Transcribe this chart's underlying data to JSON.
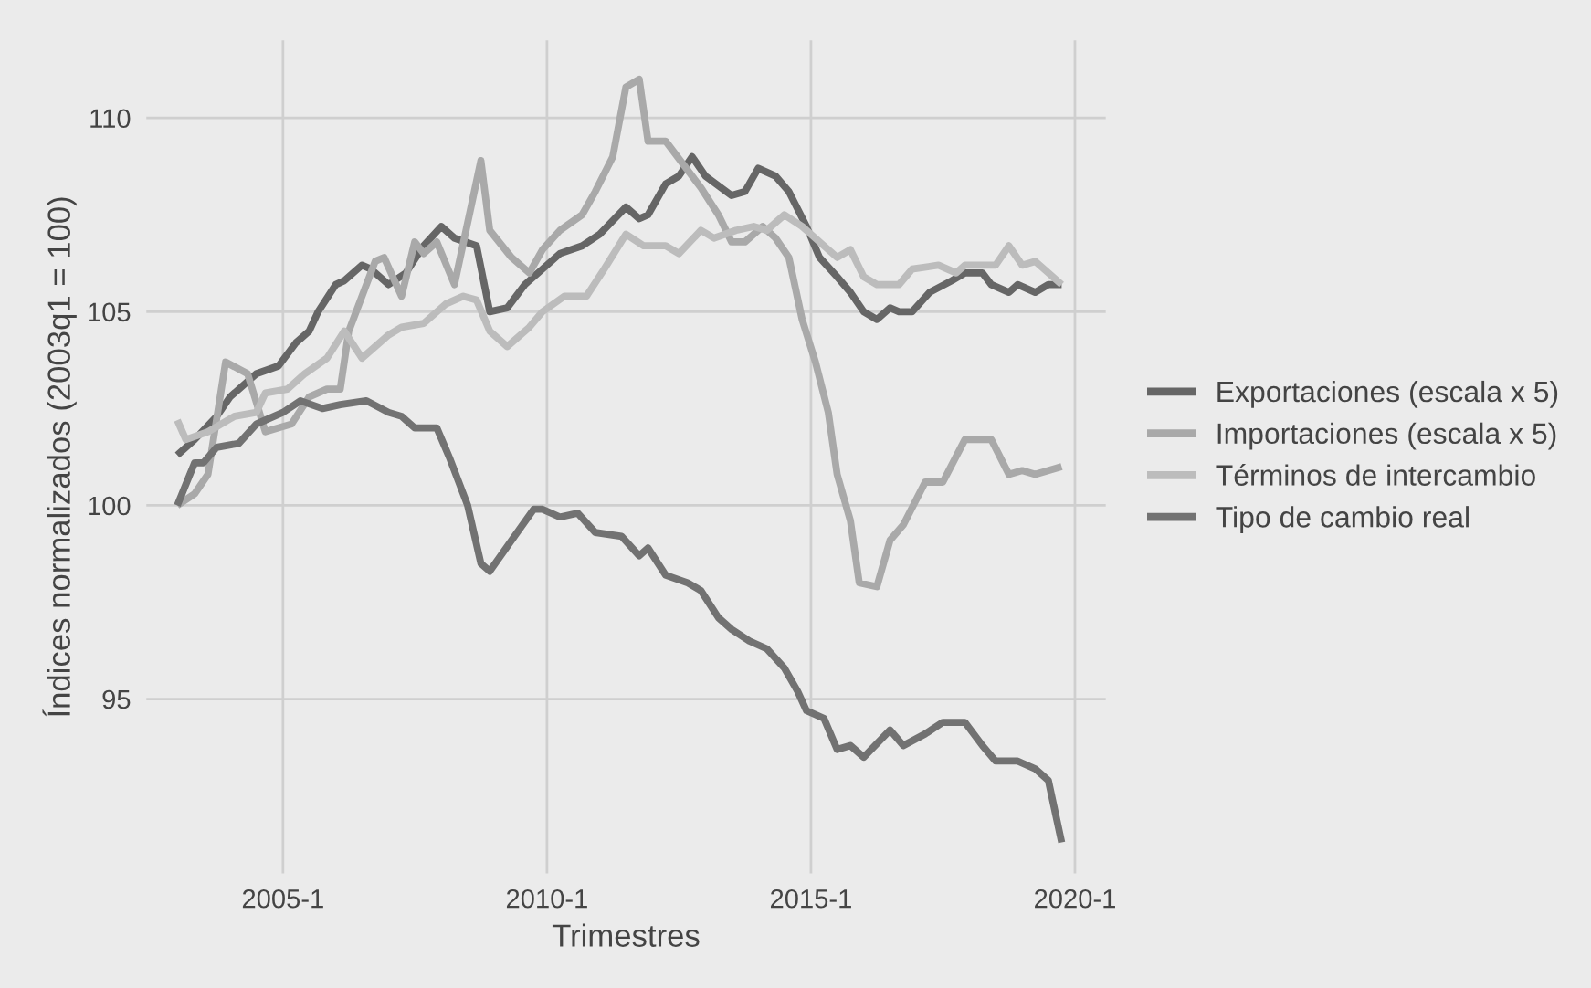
{
  "chart_data": {
    "type": "line",
    "xlabel": "Trimestres",
    "ylabel": "Índices normalizados (2003q1 = 100)",
    "xlim": [
      "2002-06",
      "2020-08"
    ],
    "ylim": [
      90.5,
      112
    ],
    "xticks": [
      {
        "value": "2005-01",
        "label": "2005-1"
      },
      {
        "value": "2010-01",
        "label": "2010-1"
      },
      {
        "value": "2015-01",
        "label": "2015-1"
      },
      {
        "value": "2020-01",
        "label": "2020-1"
      }
    ],
    "yticks": [
      95,
      100,
      105,
      110
    ],
    "grid": true,
    "legend": "right",
    "line_style": "solid",
    "series": [
      {
        "name": "Exportaciones (escala x 5)",
        "color": "#666666",
        "x": [
          "2003-01",
          "2003-05",
          "2003-10",
          "2004-01",
          "2004-07",
          "2004-12",
          "2005-04",
          "2005-07",
          "2005-09",
          "2006-01",
          "2006-03",
          "2006-07",
          "2006-09",
          "2007-01",
          "2007-05",
          "2007-09",
          "2008-01",
          "2008-04",
          "2008-09",
          "2008-12",
          "2009-04",
          "2009-08",
          "2009-12",
          "2010-04",
          "2010-09",
          "2011-01",
          "2011-07",
          "2011-10",
          "2011-12",
          "2012-04",
          "2012-07",
          "2012-10",
          "2013-01",
          "2013-07",
          "2013-10",
          "2014-01",
          "2014-05",
          "2014-08",
          "2014-12",
          "2015-03",
          "2015-07",
          "2015-10",
          "2016-01",
          "2016-04",
          "2016-07",
          "2016-09",
          "2016-12",
          "2017-04",
          "2017-09",
          "2017-12",
          "2018-04",
          "2018-06",
          "2018-10",
          "2018-12",
          "2019-04",
          "2019-07",
          "2019-10"
        ],
        "values": [
          101.3,
          101.7,
          102.3,
          102.8,
          103.4,
          103.6,
          104.2,
          104.5,
          105.0,
          105.7,
          105.8,
          106.2,
          106.1,
          105.7,
          106.0,
          106.7,
          107.2,
          106.9,
          106.7,
          105.0,
          105.1,
          105.7,
          106.1,
          106.5,
          106.7,
          107.0,
          107.7,
          107.4,
          107.5,
          108.3,
          108.5,
          109.0,
          108.5,
          108.0,
          108.1,
          108.7,
          108.5,
          108.1,
          107.2,
          106.4,
          105.9,
          105.5,
          105.0,
          104.8,
          105.1,
          105.0,
          105.0,
          105.5,
          105.8,
          106.0,
          106.0,
          105.7,
          105.5,
          105.7,
          105.5,
          105.7,
          105.7
        ]
      },
      {
        "name": "Importaciones (escala x 5)",
        "color": "#a9a9a9",
        "x": [
          "2003-01",
          "2003-05",
          "2003-08",
          "2003-12",
          "2004-05",
          "2004-09",
          "2005-03",
          "2005-07",
          "2005-11",
          "2006-02",
          "2006-04",
          "2006-10",
          "2006-12",
          "2007-04",
          "2007-07",
          "2007-09",
          "2007-12",
          "2008-04",
          "2008-10",
          "2008-12",
          "2009-05",
          "2009-09",
          "2009-12",
          "2010-04",
          "2010-09",
          "2010-12",
          "2011-04",
          "2011-07",
          "2011-10",
          "2011-12",
          "2012-04",
          "2012-08",
          "2012-12",
          "2013-04",
          "2013-07",
          "2013-10",
          "2014-02",
          "2014-05",
          "2014-08",
          "2014-11",
          "2015-02",
          "2015-05",
          "2015-07",
          "2015-10",
          "2015-12",
          "2016-04",
          "2016-07",
          "2016-10",
          "2017-03",
          "2017-07",
          "2017-12",
          "2018-06",
          "2018-10",
          "2019-01",
          "2019-04",
          "2019-10"
        ],
        "values": [
          100.0,
          100.3,
          100.8,
          103.7,
          103.4,
          101.9,
          102.1,
          102.8,
          103.0,
          103.0,
          104.5,
          106.3,
          106.4,
          105.4,
          106.8,
          106.5,
          106.8,
          105.7,
          108.9,
          107.1,
          106.4,
          106.0,
          106.6,
          107.1,
          107.5,
          108.1,
          109.0,
          110.8,
          111.0,
          109.4,
          109.4,
          108.8,
          108.2,
          107.5,
          106.8,
          106.8,
          107.2,
          106.9,
          106.4,
          104.8,
          103.7,
          102.4,
          100.8,
          99.6,
          98.0,
          97.9,
          99.1,
          99.5,
          100.6,
          100.6,
          101.7,
          101.7,
          100.8,
          100.9,
          100.8,
          101.0
        ]
      },
      {
        "name": "Términos de intercambio",
        "color": "#bcbcbc",
        "x": [
          "2003-01",
          "2003-03",
          "2003-08",
          "2004-02",
          "2004-07",
          "2004-09",
          "2005-02",
          "2005-06",
          "2005-11",
          "2006-03",
          "2006-07",
          "2007-01",
          "2007-04",
          "2007-09",
          "2008-02",
          "2008-06",
          "2008-09",
          "2008-12",
          "2009-04",
          "2009-09",
          "2009-12",
          "2010-05",
          "2010-10",
          "2011-02",
          "2011-07",
          "2011-11",
          "2012-04",
          "2012-07",
          "2012-12",
          "2013-03",
          "2013-08",
          "2013-12",
          "2014-03",
          "2014-07",
          "2014-11",
          "2015-03",
          "2015-07",
          "2015-10",
          "2016-01",
          "2016-04",
          "2016-09",
          "2016-12",
          "2017-06",
          "2017-10",
          "2017-12",
          "2018-07",
          "2018-10",
          "2019-01",
          "2019-04",
          "2019-10"
        ],
        "values": [
          102.2,
          101.7,
          101.9,
          102.3,
          102.4,
          102.9,
          103.0,
          103.4,
          103.8,
          104.5,
          103.8,
          104.4,
          104.6,
          104.7,
          105.2,
          105.4,
          105.3,
          104.5,
          104.1,
          104.6,
          105.0,
          105.4,
          105.4,
          106.1,
          107.0,
          106.7,
          106.7,
          106.5,
          107.1,
          106.9,
          107.1,
          107.2,
          107.1,
          107.5,
          107.2,
          106.8,
          106.4,
          106.6,
          105.9,
          105.7,
          105.7,
          106.1,
          106.2,
          106.0,
          106.2,
          106.2,
          106.7,
          106.2,
          106.3,
          105.7
        ]
      },
      {
        "name": "Tipo de cambio real",
        "color": "#727272",
        "x": [
          "2003-01",
          "2003-05",
          "2003-07",
          "2003-10",
          "2004-03",
          "2004-07",
          "2005-01",
          "2005-05",
          "2005-10",
          "2006-02",
          "2006-08",
          "2007-01",
          "2007-04",
          "2007-07",
          "2007-12",
          "2008-03",
          "2008-07",
          "2008-10",
          "2008-12",
          "2009-05",
          "2009-10",
          "2009-12",
          "2010-04",
          "2010-08",
          "2010-12",
          "2011-06",
          "2011-10",
          "2011-12",
          "2012-04",
          "2012-09",
          "2012-12",
          "2013-04",
          "2013-07",
          "2013-11",
          "2014-03",
          "2014-07",
          "2014-10",
          "2014-12",
          "2015-04",
          "2015-07",
          "2015-10",
          "2016-01",
          "2016-07",
          "2016-10",
          "2017-03",
          "2017-07",
          "2017-12",
          "2018-04",
          "2018-07",
          "2018-12",
          "2019-04",
          "2019-07",
          "2019-10"
        ],
        "values": [
          100.0,
          101.1,
          101.1,
          101.5,
          101.6,
          102.1,
          102.4,
          102.7,
          102.5,
          102.6,
          102.7,
          102.4,
          102.3,
          102.0,
          102.0,
          101.2,
          100.0,
          98.5,
          98.3,
          99.1,
          99.9,
          99.9,
          99.7,
          99.8,
          99.3,
          99.2,
          98.7,
          98.9,
          98.2,
          98.0,
          97.8,
          97.1,
          96.8,
          96.5,
          96.3,
          95.8,
          95.2,
          94.7,
          94.5,
          93.7,
          93.8,
          93.5,
          94.2,
          93.8,
          94.1,
          94.4,
          94.4,
          93.8,
          93.4,
          93.4,
          93.2,
          92.9,
          91.3
        ]
      }
    ]
  }
}
